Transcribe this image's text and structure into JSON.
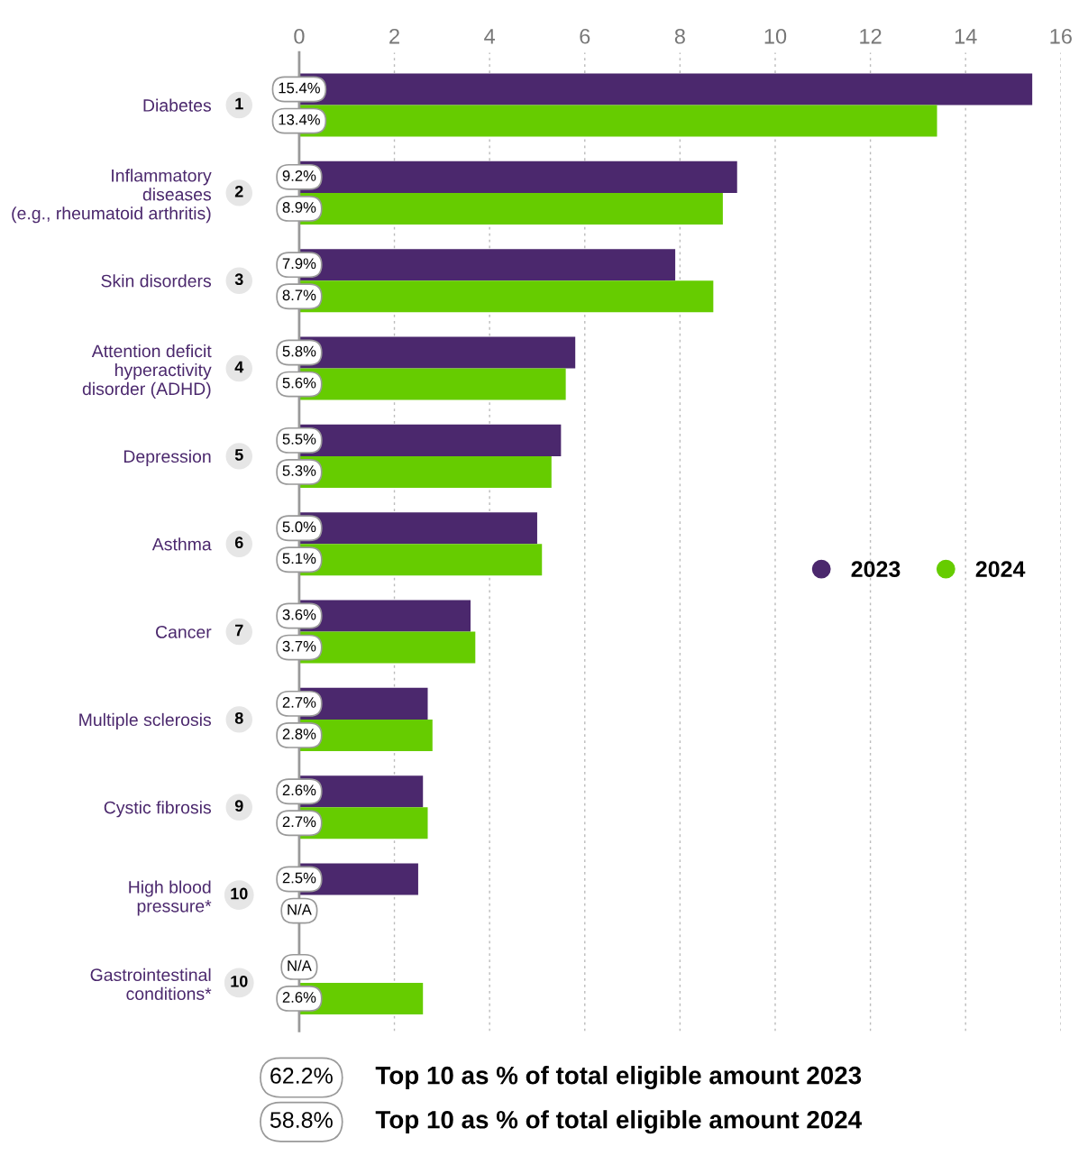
{
  "chart_data": {
    "type": "bar",
    "orientation": "horizontal",
    "categories": [
      "Diabetes",
      "Inflammatory\ndiseases\n(e.g., rheumatoid arthritis)",
      "Skin disorders",
      "Attention deficit\nhyperactivity\ndisorder (ADHD)",
      "Depression",
      "Asthma",
      "Cancer",
      "Multiple sclerosis",
      "Cystic fibrosis",
      "High blood\npressure*",
      "Gastrointestinal\nconditions*"
    ],
    "series": [
      {
        "name": "2023",
        "color": "#4b286d",
        "values": [
          15.4,
          9.2,
          7.9,
          5.8,
          5.5,
          5.0,
          3.6,
          2.7,
          2.6,
          2.5,
          null
        ],
        "value_labels": [
          "15.4%",
          "9.2%",
          "7.9%",
          "5.8%",
          "5.5%",
          "5.0%",
          "3.6%",
          "2.7%",
          "2.6%",
          "2.5%",
          "N/A"
        ]
      },
      {
        "name": "2024",
        "color": "#66cc00",
        "values": [
          13.4,
          8.9,
          8.7,
          5.6,
          5.3,
          5.1,
          3.7,
          2.8,
          2.7,
          null,
          2.6
        ],
        "value_labels": [
          "13.4%",
          "8.9%",
          "8.7%",
          "5.6%",
          "5.3%",
          "5.1%",
          "3.7%",
          "2.8%",
          "2.7%",
          "N/A",
          "2.6%"
        ]
      }
    ],
    "xlim": [
      0,
      16
    ],
    "xticks": [
      0,
      2,
      4,
      6,
      8,
      10,
      12,
      14,
      16
    ],
    "grid": "x",
    "legend": "right",
    "annotations": [
      "1",
      "2",
      "3",
      "4",
      "5",
      "6",
      "7",
      "8",
      "9",
      "10",
      "10",
      "62.2%",
      "Top 10 as % of total eligible amount 2023",
      "58.8%",
      "Top 10 as % of total eligible amount 2024"
    ]
  }
}
